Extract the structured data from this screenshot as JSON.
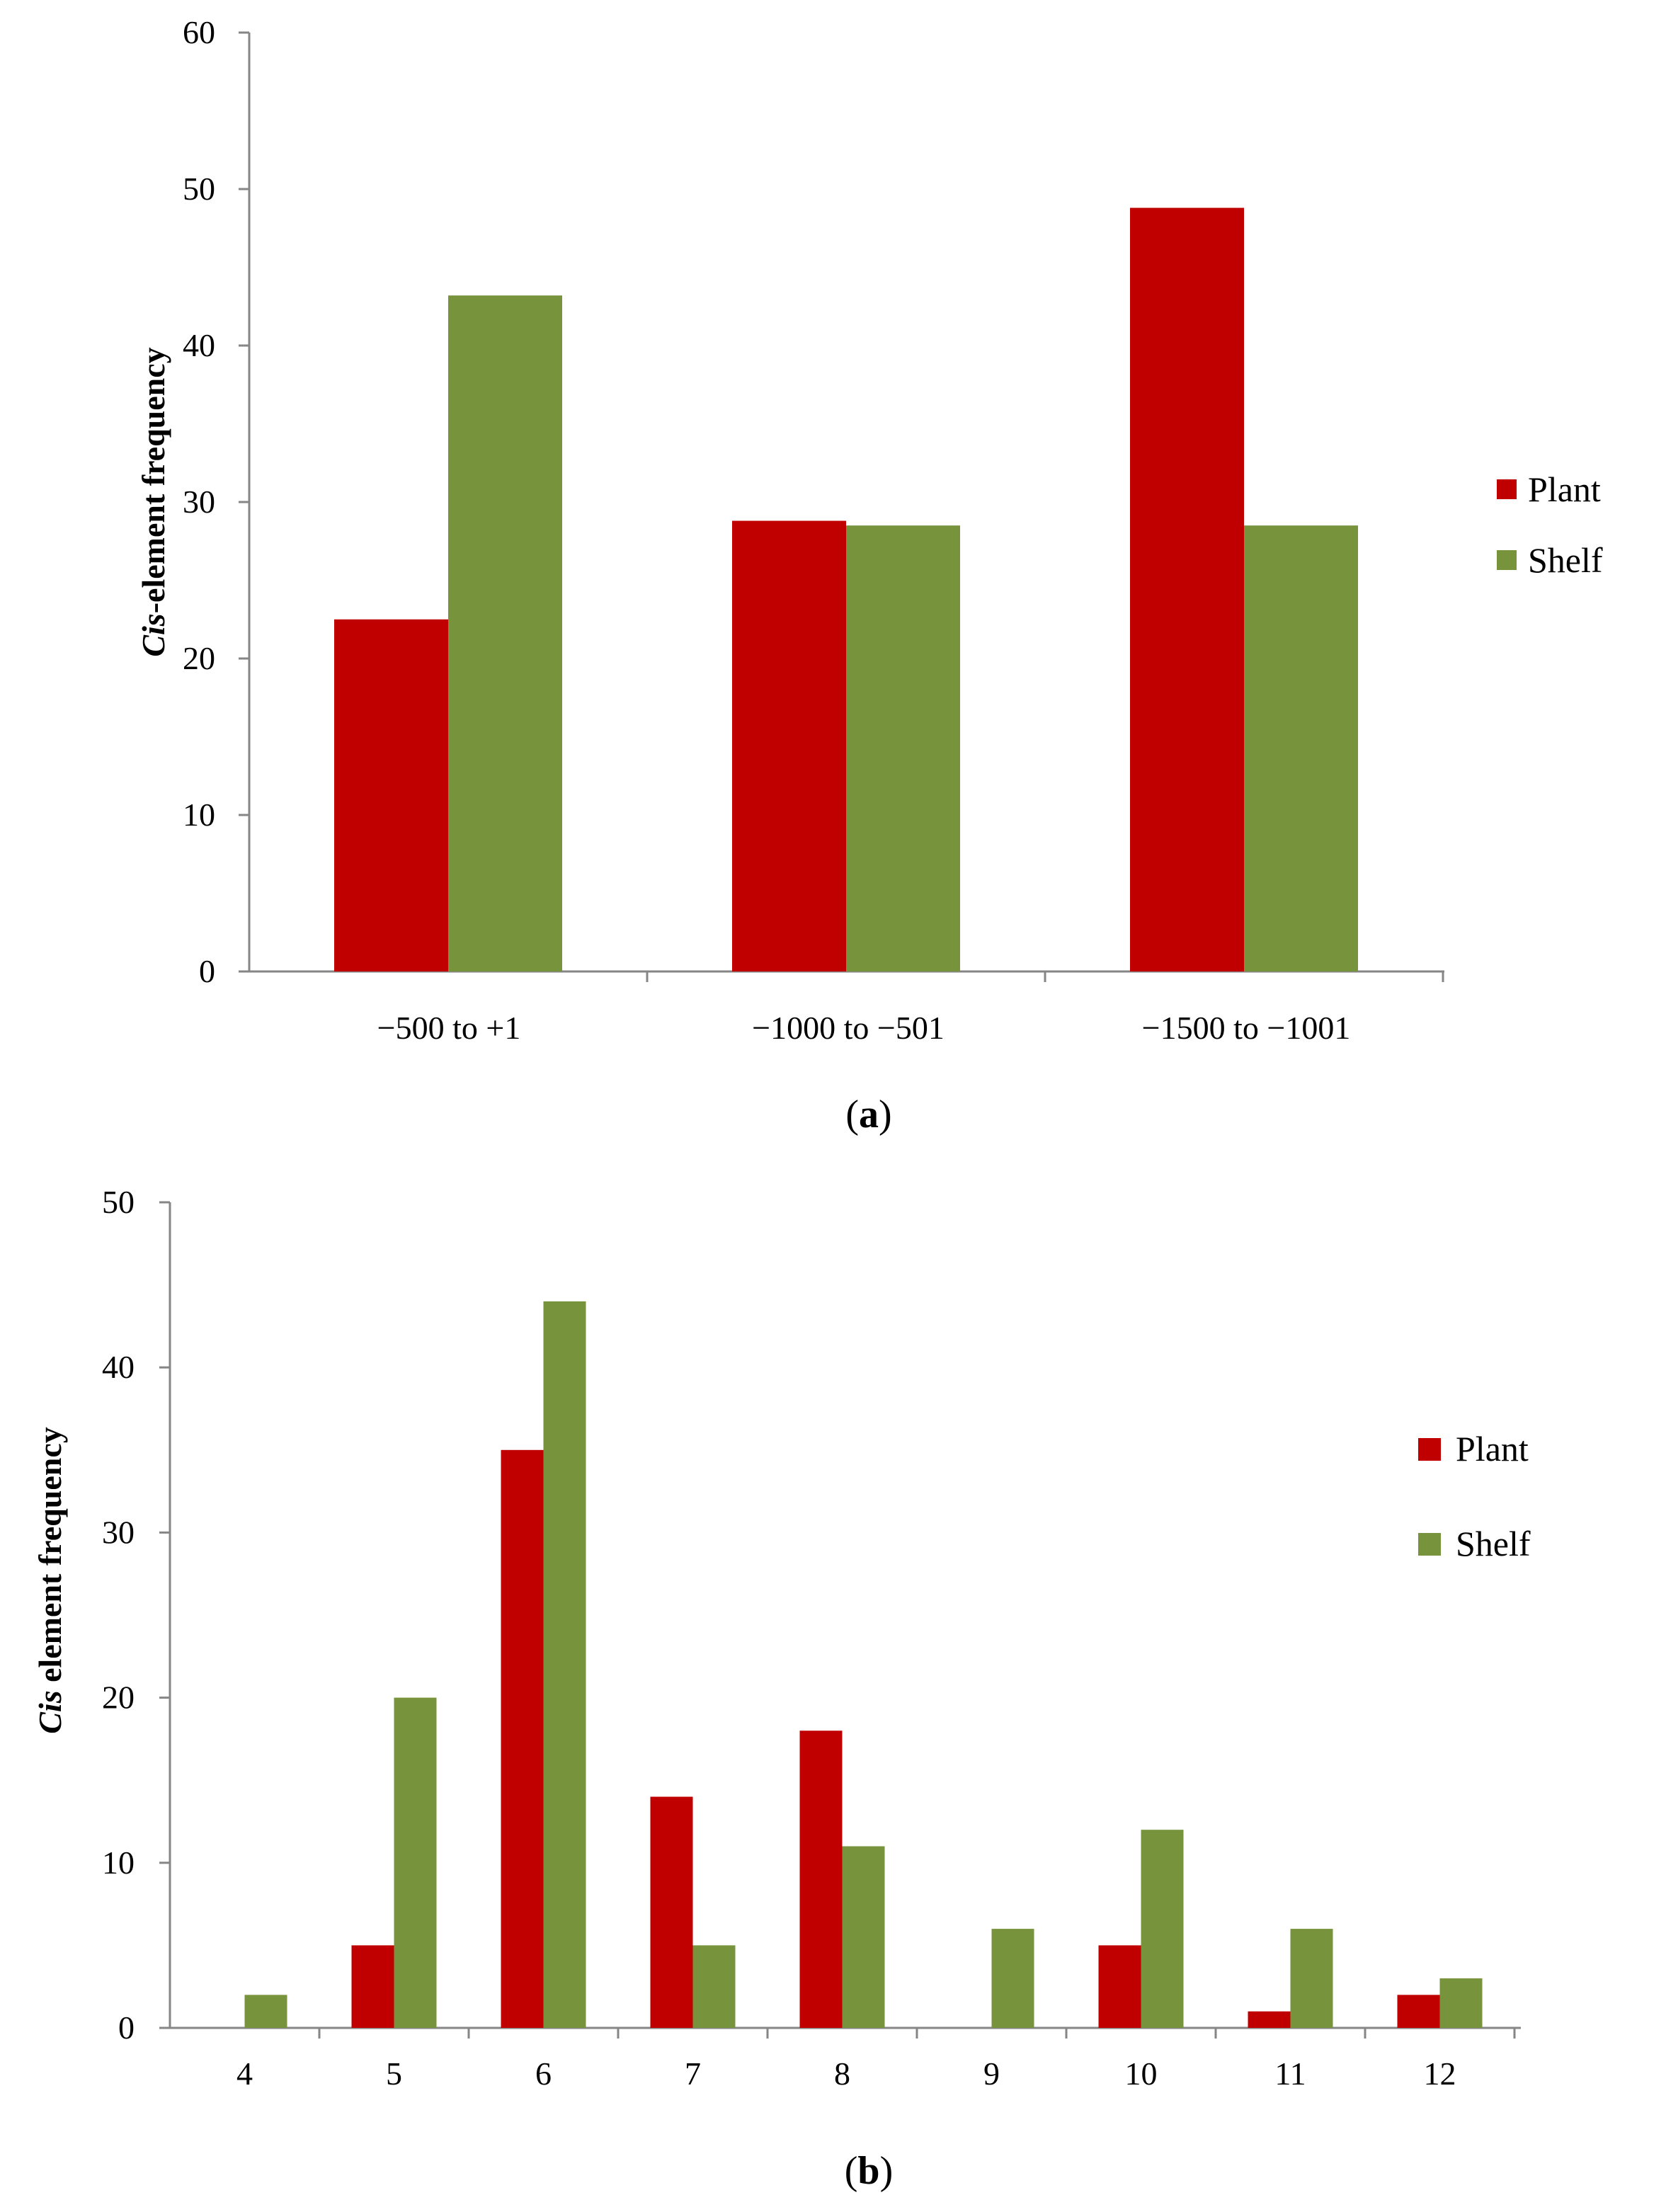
{
  "colors": {
    "plant": "#C00000",
    "shelf": "#77933C",
    "axis": "#868686"
  },
  "chart_data": [
    {
      "type": "bar",
      "panel_label": "a",
      "ylabel_italic": "Cis",
      "ylabel_rest": "-element frequency",
      "xlabel": "",
      "ylim": [
        0,
        60
      ],
      "yticks": [
        "0",
        "10",
        "20",
        "30",
        "40",
        "50",
        "60"
      ],
      "categories": [
        "−500 to +1",
        "−1000 to −501",
        "−1500 to −1001"
      ],
      "series": [
        {
          "name": "Plant",
          "values": [
            22.5,
            28.8,
            48.8
          ]
        },
        {
          "name": "Shelf",
          "values": [
            43.2,
            28.5,
            28.5
          ]
        }
      ],
      "legend": [
        "Plant",
        "Shelf"
      ]
    },
    {
      "type": "bar",
      "panel_label": "b",
      "ylabel_italic": "Cis",
      "ylabel_rest": " element frequency",
      "xlabel": "",
      "ylim": [
        0,
        50
      ],
      "yticks": [
        "0",
        "10",
        "20",
        "30",
        "40",
        "50"
      ],
      "categories": [
        "4",
        "5",
        "6",
        "7",
        "8",
        "9",
        "10",
        "11",
        "12"
      ],
      "series": [
        {
          "name": "Plant",
          "values": [
            0,
            5,
            35,
            14,
            18,
            0,
            5,
            1,
            2
          ]
        },
        {
          "name": "Shelf",
          "values": [
            2,
            20,
            44,
            5,
            11,
            6,
            12,
            6,
            3
          ]
        }
      ],
      "legend": [
        "Plant",
        "Shelf"
      ]
    }
  ]
}
